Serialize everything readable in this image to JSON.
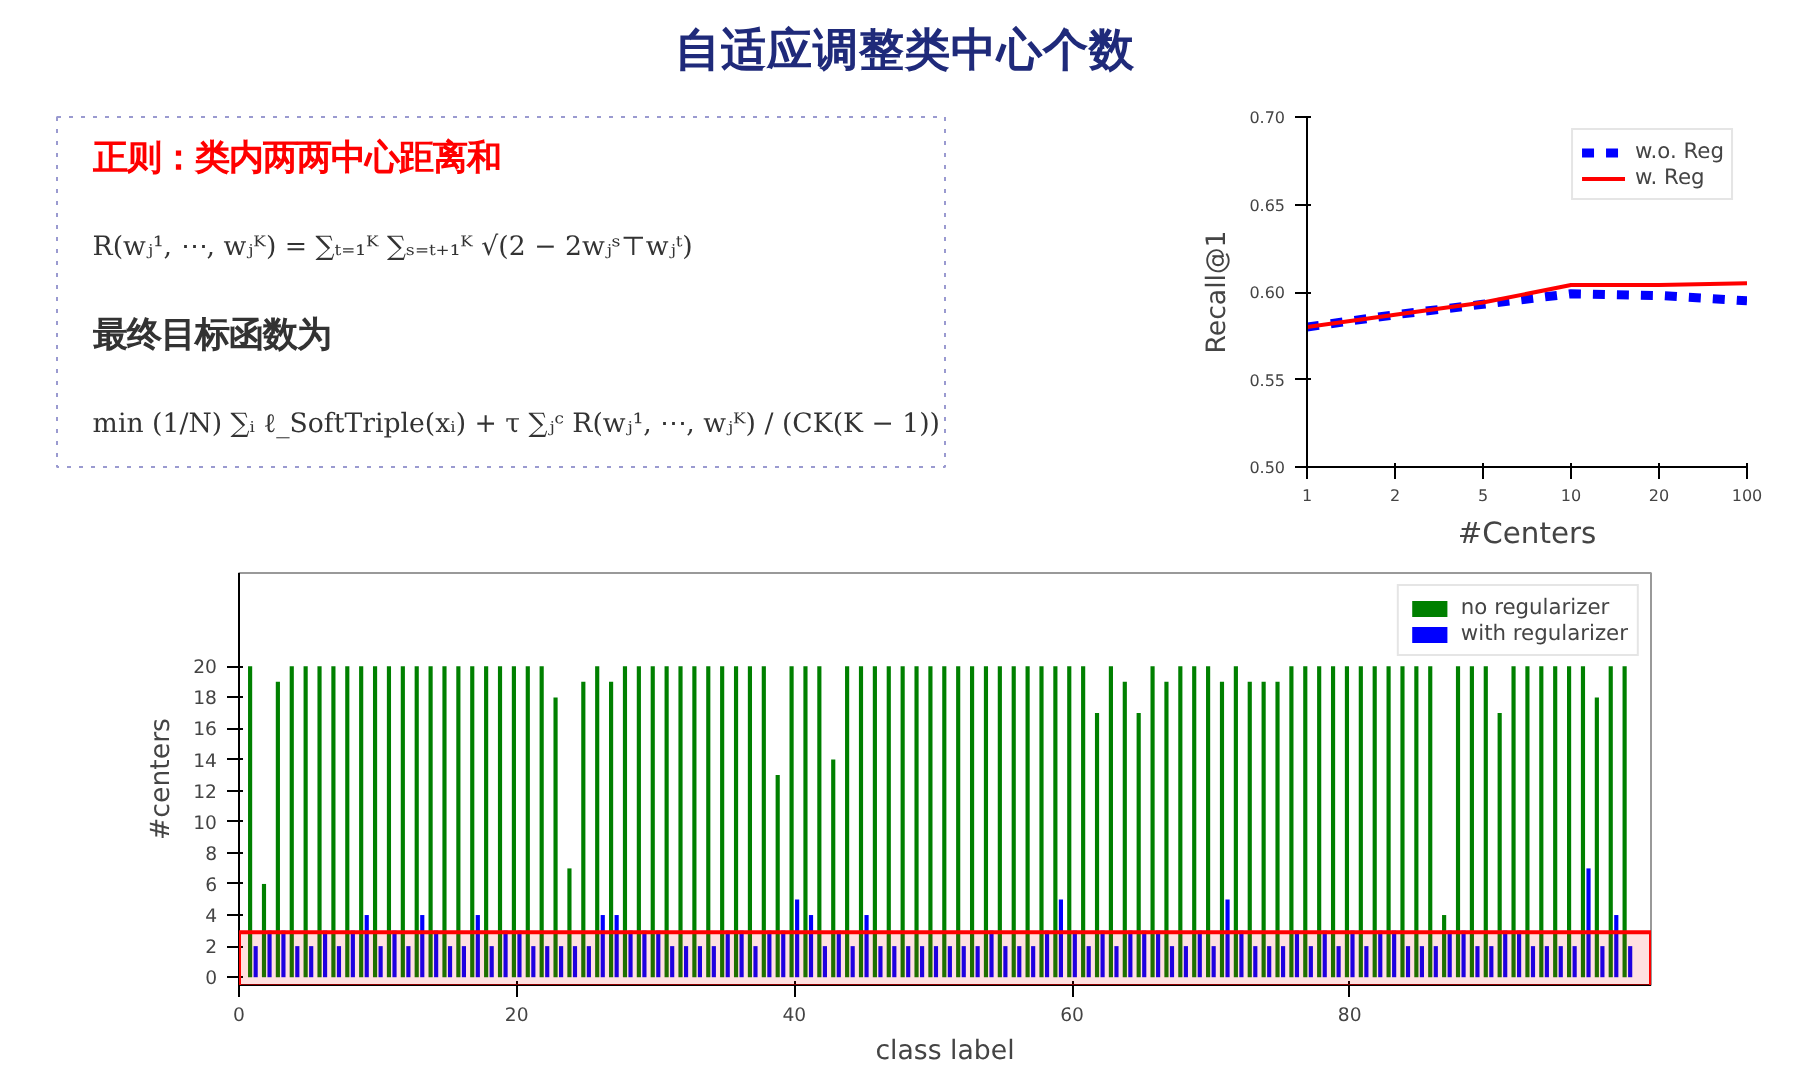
{
  "chart_data": [
    {
      "type": "other",
      "title": "自适应调整类中心个数",
      "annotations": [
        "正则：类内两两中心距离和",
        "R(wⱼ¹, ⋯, wⱼᴷ) = ∑ₜ₌₁ᴷ ∑ₛ₌ₜ₊₁ᴷ √(2 − 2wⱼˢ⊤wⱼᵗ)",
        "最终目标函数为",
        "min (1/N) ∑ᵢ ℓ_SoftTriple(xᵢ) + τ ∑ⱼᶜ R(wⱼ¹, ⋯, wⱼᴷ) / (CK(K − 1))"
      ]
    },
    {
      "type": "line",
      "xlabel": "#Centers",
      "ylabel": "Recall@1",
      "categories": [
        "1",
        "2",
        "5",
        "10",
        "20",
        "100"
      ],
      "ylim": [
        0.5,
        0.7
      ],
      "yticks": [
        {
          "value": 0.5,
          "label": "0.50"
        },
        {
          "value": 0.55,
          "label": "0.55"
        },
        {
          "value": 0.6,
          "label": "0.60"
        },
        {
          "value": 0.65,
          "label": "0.65"
        },
        {
          "value": 0.7,
          "label": "0.70"
        }
      ],
      "grid": false,
      "legend": "top right",
      "series": [
        {
          "name": "w.o. Reg",
          "color": "#0000ff",
          "line_style": "dashed",
          "values": [
            0.58,
            0.587,
            0.593,
            0.599,
            0.598,
            0.595
          ]
        },
        {
          "name": "w. Reg",
          "color": "#ff0000",
          "line_style": "solid",
          "values": [
            0.58,
            0.587,
            0.594,
            0.604,
            0.604,
            0.605
          ]
        }
      ]
    },
    {
      "type": "bar",
      "xlabel": "class label",
      "ylabel": "#centers",
      "xlim": [
        0,
        101.7
      ],
      "xticks": [
        0,
        20,
        40,
        60,
        80
      ],
      "ylim": [
        -0.5,
        26
      ],
      "yticks": [
        0,
        2,
        4,
        6,
        8,
        10,
        12,
        14,
        16,
        18,
        20
      ],
      "grid": false,
      "legend": "top right",
      "x": [
        1,
        2,
        3,
        4,
        5,
        6,
        7,
        8,
        9,
        10,
        11,
        12,
        13,
        14,
        15,
        16,
        17,
        18,
        19,
        20,
        21,
        22,
        23,
        24,
        25,
        26,
        27,
        28,
        29,
        30,
        31,
        32,
        33,
        34,
        35,
        36,
        37,
        38,
        39,
        40,
        41,
        42,
        43,
        44,
        45,
        46,
        47,
        48,
        49,
        50,
        51,
        52,
        53,
        54,
        55,
        56,
        57,
        58,
        59,
        60,
        61,
        62,
        63,
        64,
        65,
        66,
        67,
        68,
        69,
        70,
        71,
        72,
        73,
        74,
        75,
        76,
        77,
        78,
        79,
        80,
        81,
        82,
        83,
        84,
        85,
        86,
        87,
        88,
        89,
        90,
        91,
        92,
        93,
        94,
        95,
        96,
        97,
        98,
        99,
        100
      ],
      "bands": [
        {
          "axis": "y",
          "from": -0.6,
          "to": 2.9,
          "color": "#ff0000"
        }
      ],
      "series": [
        {
          "name": "no regularizer",
          "color": "#008000",
          "values": [
            20,
            6,
            19,
            20,
            20,
            20,
            20,
            20,
            20,
            20,
            20,
            20,
            20,
            20,
            20,
            20,
            20,
            20,
            20,
            20,
            20,
            20,
            18,
            7,
            19,
            20,
            19,
            20,
            20,
            20,
            20,
            20,
            20,
            20,
            20,
            20,
            20,
            20,
            13,
            20,
            20,
            20,
            14,
            20,
            20,
            20,
            20,
            20,
            20,
            20,
            20,
            20,
            20,
            20,
            20,
            20,
            20,
            20,
            20,
            20,
            20,
            17,
            20,
            19,
            17,
            20,
            19,
            20,
            20,
            20,
            19,
            20,
            19,
            19,
            19,
            20,
            20,
            20,
            20,
            20,
            20,
            20,
            20,
            20,
            20,
            20,
            4,
            20,
            20,
            20,
            17,
            20,
            20,
            20,
            20,
            20,
            20,
            18,
            20,
            20
          ]
        },
        {
          "name": "with regularizer",
          "color": "#0000ff",
          "values": [
            2,
            3,
            3,
            2,
            2,
            3,
            2,
            3,
            4,
            2,
            3,
            2,
            4,
            3,
            2,
            2,
            4,
            2,
            3,
            3,
            2,
            2,
            2,
            2,
            2,
            4,
            4,
            3,
            3,
            3,
            2,
            2,
            2,
            2,
            3,
            3,
            2,
            3,
            3,
            5,
            4,
            2,
            3,
            2,
            4,
            2,
            2,
            2,
            2,
            2,
            2,
            2,
            2,
            3,
            2,
            2,
            2,
            3,
            5,
            3,
            2,
            3,
            2,
            3,
            3,
            3,
            2,
            2,
            3,
            2,
            5,
            3,
            2,
            2,
            2,
            3,
            2,
            3,
            2,
            3,
            2,
            3,
            3,
            2,
            2,
            2,
            3,
            3,
            2,
            2,
            3,
            3,
            2,
            2,
            2,
            2,
            7,
            2,
            4,
            2
          ]
        }
      ]
    }
  ]
}
